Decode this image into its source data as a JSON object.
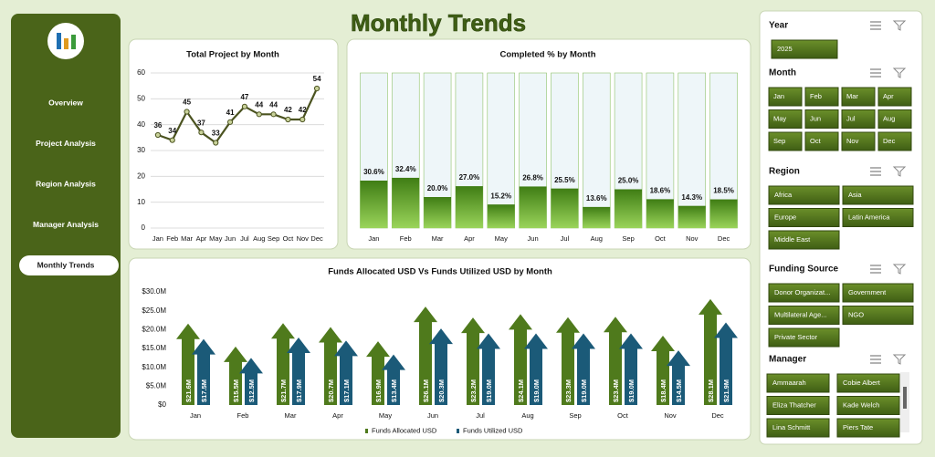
{
  "header": {
    "title": "Monthly Trends"
  },
  "sidebar": {
    "items": [
      "Overview",
      "Project Analysis",
      "Region Analysis",
      "Manager Analysis",
      "Monthly Trends"
    ],
    "selected": "Monthly Trends"
  },
  "chart_data": [
    {
      "type": "line",
      "title": "Total Project by Month",
      "categories": [
        "Jan",
        "Feb",
        "Mar",
        "Apr",
        "May",
        "Jun",
        "Jul",
        "Aug",
        "Sep",
        "Oct",
        "Nov",
        "Dec"
      ],
      "values": [
        36,
        34,
        45,
        37,
        33,
        41,
        47,
        44,
        44,
        42,
        42,
        54
      ],
      "color": "#4b5320",
      "ylim": [
        0,
        60
      ],
      "yticks": [
        0,
        10,
        20,
        30,
        40,
        50,
        60
      ],
      "grid": true
    },
    {
      "type": "bar",
      "title": "Completed % by Month",
      "categories": [
        "Jan",
        "Feb",
        "Mar",
        "Apr",
        "May",
        "Jun",
        "Jul",
        "Aug",
        "Sep",
        "Oct",
        "Nov",
        "Dec"
      ],
      "values": [
        30.6,
        32.4,
        20.0,
        27.0,
        15.2,
        26.8,
        25.5,
        13.6,
        25.0,
        18.6,
        14.3,
        18.5
      ],
      "value_labels": [
        "30.6%",
        "32.4%",
        "20.0%",
        "27.0%",
        "15.2%",
        "26.8%",
        "25.5%",
        "13.6%",
        "25.0%",
        "18.6%",
        "14.3%",
        "18.5%"
      ],
      "color": "#6aa82a",
      "ylim": [
        0,
        100
      ]
    },
    {
      "type": "arrow",
      "title": "Funds Allocated USD Vs Funds Utilized USD by Month",
      "categories": [
        "Jan",
        "Feb",
        "Mar",
        "Apr",
        "May",
        "Jun",
        "Jul",
        "Aug",
        "Sep",
        "Oct",
        "Nov",
        "Dec"
      ],
      "series": [
        {
          "name": "Funds Allocated USD",
          "color": "#4f7a1c",
          "values": [
            21600000,
            15500000,
            21700000,
            20700000,
            16900000,
            26100000,
            23200000,
            24100000,
            23300000,
            23400000,
            18400000,
            28100000
          ],
          "value_labels": [
            "$21.6M",
            "$15.5M",
            "$21.7M",
            "$20.7M",
            "$16.9M",
            "$26.1M",
            "$23.2M",
            "$24.1M",
            "$23.3M",
            "$23.4M",
            "$18.4M",
            "$28.1M"
          ]
        },
        {
          "name": "Funds Utilized USD",
          "color": "#1b5a78",
          "values": [
            17500000,
            12500000,
            17900000,
            17100000,
            13400000,
            20300000,
            19000000,
            19000000,
            19000000,
            19000000,
            14500000,
            21900000
          ],
          "value_labels": [
            "$17.5M",
            "$12.5M",
            "$17.9M",
            "$17.1M",
            "$13.4M",
            "$20.3M",
            "$19.0M",
            "$19.0M",
            "$19.0M",
            "$19.0M",
            "$14.5M",
            "$21.9M"
          ]
        }
      ],
      "ylim": [
        0,
        30000000
      ],
      "yticks": [
        {
          "value": 0,
          "label": "$0"
        },
        {
          "value": 5000000,
          "label": "$5.0M"
        },
        {
          "value": 10000000,
          "label": "$10.0M"
        },
        {
          "value": 15000000,
          "label": "$15.0M"
        },
        {
          "value": 20000000,
          "label": "$20.0M"
        },
        {
          "value": 25000000,
          "label": "$25.0M"
        },
        {
          "value": 30000000,
          "label": "$30.0M"
        }
      ],
      "legend": "bottom"
    }
  ],
  "slicers": [
    {
      "title": "Year",
      "items": [
        "2025"
      ]
    },
    {
      "title": "Month",
      "items": [
        "Jan",
        "Feb",
        "Mar",
        "Apr",
        "May",
        "Jun",
        "Jul",
        "Aug",
        "Sep",
        "Oct",
        "Nov",
        "Dec"
      ]
    },
    {
      "title": "Region",
      "items": [
        "Africa",
        "Asia",
        "Europe",
        "Latin America",
        "Middle East"
      ]
    },
    {
      "title": "Funding Source",
      "items": [
        "Donor Organizat...",
        "Government",
        "Multilateral Age...",
        "NGO",
        "Private Sector"
      ]
    },
    {
      "title": "Manager",
      "items": [
        "Ammaarah",
        "Cobie Albert",
        "Eliza Thatcher",
        "Kade Welch",
        "Lina Schmitt",
        "Piers Tate"
      ]
    }
  ]
}
